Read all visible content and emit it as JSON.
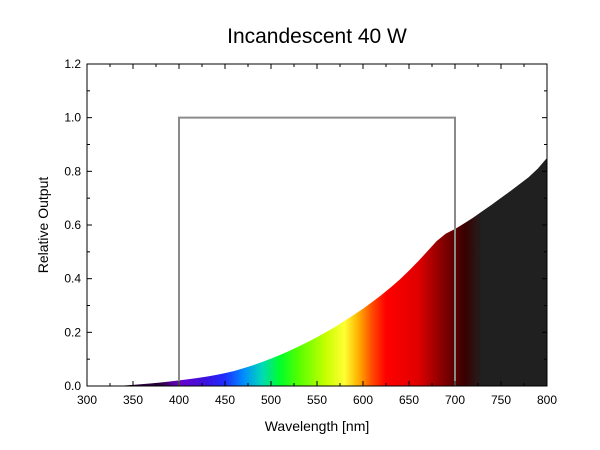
{
  "chart_data": {
    "type": "area",
    "title": "Incandescent 40 W",
    "xlabel": "Wavelength [nm]",
    "ylabel": "Relative Output",
    "xlim": [
      300,
      800
    ],
    "ylim": [
      0,
      1.2
    ],
    "x_ticks": [
      300,
      350,
      400,
      450,
      500,
      550,
      600,
      650,
      700,
      750,
      800
    ],
    "y_ticks": [
      0.0,
      0.2,
      0.4,
      0.6,
      0.8,
      1.0,
      1.2
    ],
    "x_tick_labels": [
      "300",
      "350",
      "400",
      "450",
      "500",
      "550",
      "600",
      "650",
      "700",
      "750",
      "800"
    ],
    "y_tick_labels": [
      "0.0",
      "0.2",
      "0.4",
      "0.6",
      "0.8",
      "1.0",
      "1.2"
    ],
    "grid": false,
    "series": [
      {
        "name": "Incandescent 40 W spectrum",
        "x": [
          325,
          340,
          350,
          360,
          370,
          380,
          390,
          400,
          410,
          420,
          430,
          440,
          450,
          460,
          470,
          480,
          490,
          500,
          510,
          520,
          530,
          540,
          550,
          560,
          570,
          580,
          590,
          600,
          610,
          620,
          630,
          640,
          650,
          660,
          670,
          680,
          690,
          700,
          710,
          720,
          730,
          740,
          750,
          760,
          770,
          780,
          790,
          800
        ],
        "y": [
          0.0,
          0.002,
          0.004,
          0.007,
          0.01,
          0.013,
          0.017,
          0.021,
          0.025,
          0.03,
          0.035,
          0.041,
          0.048,
          0.056,
          0.066,
          0.077,
          0.089,
          0.102,
          0.116,
          0.131,
          0.147,
          0.164,
          0.182,
          0.201,
          0.221,
          0.243,
          0.265,
          0.288,
          0.313,
          0.339,
          0.367,
          0.397,
          0.43,
          0.465,
          0.502,
          0.54,
          0.568,
          0.585,
          0.606,
          0.628,
          0.652,
          0.676,
          0.701,
          0.726,
          0.752,
          0.778,
          0.81,
          0.85
        ]
      },
      {
        "name": "Visible range window",
        "x": [
          400,
          400,
          700,
          700
        ],
        "y": [
          0.0,
          1.0,
          1.0,
          0.0
        ]
      }
    ],
    "colors": {
      "axis": "#000000",
      "window_line": "#8a8a8a",
      "infrared_fill": "#202020"
    },
    "spectrum_gradient": [
      {
        "wavelength": 380,
        "color": "#2a0040"
      },
      {
        "wavelength": 400,
        "color": "#6a00c8"
      },
      {
        "wavelength": 430,
        "color": "#3a12e0"
      },
      {
        "wavelength": 450,
        "color": "#1f2cff"
      },
      {
        "wavelength": 470,
        "color": "#008cff"
      },
      {
        "wavelength": 490,
        "color": "#00d8b8"
      },
      {
        "wavelength": 510,
        "color": "#00ff2a"
      },
      {
        "wavelength": 530,
        "color": "#55ff00"
      },
      {
        "wavelength": 560,
        "color": "#c8ff00"
      },
      {
        "wavelength": 580,
        "color": "#ffff33"
      },
      {
        "wavelength": 595,
        "color": "#ffb000"
      },
      {
        "wavelength": 610,
        "color": "#ff4a00"
      },
      {
        "wavelength": 625,
        "color": "#ff0000"
      },
      {
        "wavelength": 660,
        "color": "#e00000"
      },
      {
        "wavelength": 685,
        "color": "#8a0000"
      },
      {
        "wavelength": 710,
        "color": "#3a0000"
      },
      {
        "wavelength": 730,
        "color": "#202020"
      },
      {
        "wavelength": 800,
        "color": "#202020"
      }
    ]
  }
}
